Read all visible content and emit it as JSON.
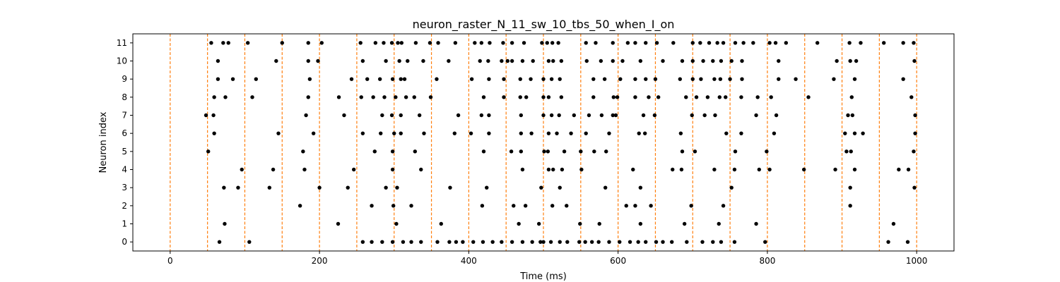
{
  "chart_data": {
    "type": "scatter",
    "title": "neuron_raster_N_11_sw_10_tbs_50_when_I_on",
    "xlabel": "Time (ms)",
    "ylabel": "Neuron index",
    "xlim": [
      -50,
      1050
    ],
    "ylim": [
      -0.5,
      11.5
    ],
    "xticks": [
      0,
      200,
      400,
      600,
      800,
      1000
    ],
    "yticks": [
      0,
      1,
      2,
      3,
      4,
      5,
      6,
      7,
      8,
      9,
      10,
      11
    ],
    "grid": false,
    "marker_color": "#000000",
    "vline_color": "#ff7f0e",
    "vlines": [
      0,
      50,
      100,
      150,
      200,
      250,
      300,
      350,
      400,
      450,
      500,
      550,
      600,
      650,
      700,
      750,
      800,
      850,
      900,
      950,
      1000
    ],
    "series": [
      {
        "neuron": 0,
        "x": [
          66,
          106,
          258,
          270,
          284,
          298,
          312,
          323,
          336,
          358,
          374,
          383,
          392,
          406,
          419,
          432,
          444,
          458,
          472,
          485,
          496,
          500,
          510,
          522,
          532,
          548,
          556,
          565,
          574,
          588,
          602,
          616,
          627,
          637,
          651,
          660,
          672,
          692,
          713,
          727,
          738,
          756,
          797,
          962,
          988
        ]
      },
      {
        "neuron": 1,
        "x": [
          73,
          225,
          303,
          363,
          467,
          494,
          549,
          575,
          630,
          689,
          735,
          785,
          969
        ]
      },
      {
        "neuron": 2,
        "x": [
          174,
          270,
          299,
          323,
          418,
          460,
          476,
          512,
          531,
          611,
          623,
          644,
          698,
          741,
          911
        ]
      },
      {
        "neuron": 3,
        "x": [
          72,
          91,
          133,
          200,
          238,
          289,
          304,
          375,
          424,
          497,
          522,
          583,
          630,
          752,
          911,
          997
        ]
      },
      {
        "neuron": 4,
        "x": [
          96,
          138,
          180,
          246,
          298,
          336,
          472,
          507,
          513,
          525,
          551,
          620,
          673,
          685,
          729,
          756,
          789,
          803,
          849,
          891,
          917,
          976,
          989
        ]
      },
      {
        "neuron": 5,
        "x": [
          51,
          178,
          274,
          298,
          328,
          420,
          457,
          470,
          501,
          506,
          528,
          550,
          568,
          584,
          686,
          703,
          757,
          799,
          906,
          912,
          996
        ]
      },
      {
        "neuron": 6,
        "x": [
          59,
          145,
          192,
          258,
          282,
          300,
          309,
          340,
          381,
          403,
          427,
          470,
          484,
          507,
          518,
          537,
          557,
          588,
          628,
          636,
          684,
          745,
          765,
          809,
          904,
          917,
          928,
          998
        ]
      },
      {
        "neuron": 7,
        "x": [
          48,
          58,
          182,
          233,
          284,
          297,
          309,
          334,
          386,
          417,
          427,
          470,
          500,
          511,
          521,
          541,
          561,
          578,
          593,
          597,
          634,
          649,
          699,
          716,
          730,
          785,
          812,
          908,
          914,
          998
        ]
      },
      {
        "neuron": 8,
        "x": [
          59,
          74,
          110,
          185,
          226,
          256,
          272,
          287,
          302,
          316,
          327,
          349,
          420,
          447,
          469,
          477,
          500,
          507,
          524,
          567,
          594,
          599,
          623,
          641,
          654,
          691,
          705,
          720,
          736,
          744,
          765,
          787,
          805,
          855,
          913,
          993
        ]
      },
      {
        "neuron": 9,
        "x": [
          64,
          84,
          115,
          187,
          243,
          264,
          281,
          298,
          309,
          314,
          357,
          404,
          427,
          447,
          469,
          483,
          500,
          511,
          522,
          567,
          582,
          603,
          623,
          637,
          650,
          683,
          700,
          711,
          729,
          737,
          750,
          766,
          815,
          838,
          889,
          917,
          982
        ]
      },
      {
        "neuron": 10,
        "x": [
          64,
          142,
          185,
          198,
          258,
          289,
          307,
          318,
          339,
          373,
          415,
          426,
          444,
          452,
          458,
          472,
          486,
          507,
          513,
          524,
          558,
          577,
          593,
          606,
          630,
          660,
          686,
          700,
          714,
          727,
          738,
          752,
          766,
          815,
          893,
          911,
          919,
          997
        ]
      },
      {
        "neuron": 11,
        "x": [
          55,
          71,
          78,
          104,
          150,
          185,
          203,
          255,
          275,
          286,
          297,
          305,
          310,
          329,
          348,
          359,
          382,
          408,
          417,
          428,
          446,
          458,
          474,
          498,
          505,
          512,
          520,
          557,
          570,
          593,
          613,
          623,
          637,
          652,
          674,
          700,
          710,
          722,
          733,
          741,
          757,
          768,
          781,
          803,
          811,
          825,
          867,
          910,
          925,
          956,
          982,
          996
        ]
      }
    ]
  }
}
